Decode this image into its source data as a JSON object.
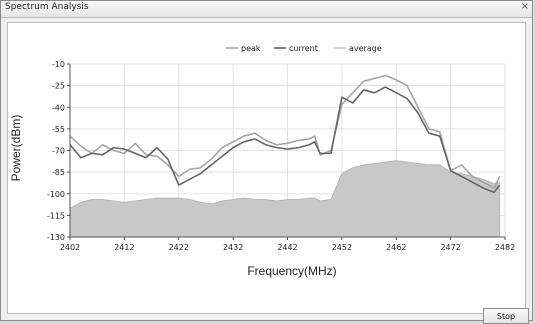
{
  "window": {
    "title": "Spectrum Analysis",
    "close_glyph": "×"
  },
  "button": {
    "stop_label": "Stop"
  },
  "colors": {
    "peak": "#a6a6a6",
    "current": "#666666",
    "average": "#c8c8c8",
    "grid": "#e3e3e3",
    "axis": "#555555"
  },
  "chart_data": {
    "type": "line",
    "title": "",
    "xlabel": "Frequency(MHz)",
    "ylabel": "Power(dBm)",
    "xlim": [
      2402,
      2482
    ],
    "ylim": [
      -130,
      -10
    ],
    "xticks": [
      2402,
      2412,
      2422,
      2432,
      2442,
      2452,
      2462,
      2472,
      2482
    ],
    "yticks": [
      -10,
      -25,
      -40,
      -55,
      -70,
      -85,
      -100,
      -115,
      -130
    ],
    "grid": true,
    "legend": "top-center",
    "series": [
      {
        "name": "peak",
        "x": [
          2402,
          2404,
          2406,
          2408,
          2410,
          2412,
          2414,
          2416,
          2418,
          2420,
          2422,
          2424,
          2426,
          2428,
          2430,
          2432,
          2434,
          2436,
          2438,
          2440,
          2442,
          2444,
          2446,
          2447,
          2448,
          2450,
          2452,
          2454,
          2456,
          2458,
          2460,
          2462,
          2464,
          2466,
          2468,
          2470,
          2472,
          2474,
          2476,
          2478,
          2480,
          2481
        ],
        "values": [
          -60,
          -67,
          -72,
          -66,
          -70,
          -72,
          -65,
          -73,
          -74,
          -80,
          -88,
          -83,
          -82,
          -76,
          -68,
          -64,
          -60,
          -58,
          -63,
          -66,
          -65,
          -63,
          -62,
          -60,
          -73,
          -70,
          -38,
          -30,
          -22,
          -20,
          -18,
          -21,
          -25,
          -40,
          -55,
          -57,
          -84,
          -80,
          -88,
          -92,
          -96,
          -88
        ]
      },
      {
        "name": "current",
        "x": [
          2402,
          2404,
          2406,
          2408,
          2410,
          2412,
          2414,
          2416,
          2418,
          2420,
          2422,
          2424,
          2426,
          2428,
          2430,
          2432,
          2434,
          2436,
          2438,
          2440,
          2442,
          2444,
          2446,
          2447,
          2448,
          2450,
          2452,
          2454,
          2456,
          2458,
          2460,
          2462,
          2464,
          2466,
          2468,
          2470,
          2472,
          2474,
          2476,
          2478,
          2480,
          2481
        ],
        "values": [
          -66,
          -75,
          -72,
          -73,
          -68,
          -69,
          -72,
          -75,
          -68,
          -76,
          -94,
          -90,
          -86,
          -80,
          -74,
          -68,
          -64,
          -62,
          -66,
          -68,
          -69,
          -68,
          -66,
          -64,
          -72,
          -72,
          -33,
          -37,
          -28,
          -30,
          -26,
          -30,
          -34,
          -44,
          -58,
          -60,
          -84,
          -88,
          -92,
          -96,
          -99,
          -94
        ]
      },
      {
        "name": "average",
        "x": [
          2402,
          2404,
          2406,
          2408,
          2410,
          2412,
          2414,
          2416,
          2418,
          2420,
          2422,
          2424,
          2426,
          2428,
          2430,
          2432,
          2434,
          2436,
          2438,
          2440,
          2442,
          2444,
          2446,
          2447,
          2448,
          2450,
          2452,
          2454,
          2456,
          2458,
          2460,
          2462,
          2464,
          2466,
          2468,
          2470,
          2472,
          2474,
          2476,
          2478,
          2480,
          2481
        ],
        "values": [
          -110,
          -106,
          -104,
          -104,
          -105,
          -106,
          -105,
          -104,
          -103,
          -103,
          -103,
          -104,
          -106,
          -107,
          -105,
          -104,
          -103,
          -104,
          -104,
          -105,
          -104,
          -104,
          -103,
          -103,
          -105,
          -104,
          -86,
          -82,
          -80,
          -79,
          -78,
          -77,
          -78,
          -79,
          -80,
          -80,
          -85,
          -86,
          -88,
          -90,
          -93,
          -92
        ]
      }
    ]
  }
}
